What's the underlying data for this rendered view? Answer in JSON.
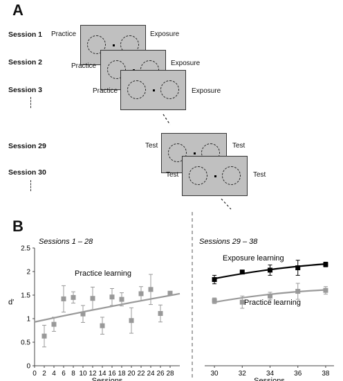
{
  "panel_a": {
    "letter": "A",
    "sessions": [
      {
        "label": "Session 1",
        "left": "Practice",
        "right": "Exposure"
      },
      {
        "label": "Session 2",
        "left": "Practice",
        "right": "Exposure"
      },
      {
        "label": "Session 3",
        "left": "Practice",
        "right": "Exposure"
      },
      {
        "label": "Session 29",
        "left": "Test",
        "right": "Test"
      },
      {
        "label": "Session 30",
        "left": "Test",
        "right": "Test"
      }
    ]
  },
  "panel_b": {
    "letter": "B"
  },
  "chart_data": [
    {
      "type": "scatter",
      "title": "Sessions  1 – 28",
      "xlabel": "Sessions",
      "ylabel": "d'",
      "xlim": [
        0,
        30
      ],
      "ylim": [
        0,
        2.5
      ],
      "xticks": [
        0,
        2,
        4,
        6,
        8,
        10,
        12,
        14,
        16,
        18,
        20,
        22,
        24,
        26,
        28
      ],
      "yticks": [
        0,
        0.5,
        1,
        1.5,
        2,
        2.5
      ],
      "series": [
        {
          "name": "Practice learning",
          "color": "#999999",
          "x": [
            2,
            4,
            6,
            8,
            10,
            12,
            14,
            16,
            18,
            20,
            22,
            24,
            26,
            28
          ],
          "y": [
            0.63,
            0.88,
            1.42,
            1.45,
            1.1,
            1.43,
            0.85,
            1.46,
            1.41,
            0.96,
            1.53,
            1.62,
            1.11,
            1.54
          ],
          "err": [
            0.23,
            0.15,
            0.28,
            0.12,
            0.18,
            0.24,
            0.18,
            0.18,
            0.14,
            0.27,
            0.15,
            0.32,
            0.18,
            0.0
          ],
          "fit": {
            "x0": 0,
            "y0": 0.93,
            "x1": 30,
            "y1": 1.53
          }
        }
      ]
    },
    {
      "type": "scatter",
      "title": "Sessions  29 – 38",
      "xlabel": "Sessions",
      "ylabel": "",
      "xlim": [
        29.3,
        38.6
      ],
      "ylim": [
        0,
        2.5
      ],
      "xticks": [
        30,
        32,
        34,
        36,
        38
      ],
      "series": [
        {
          "name": "Exposure learning",
          "color": "#000000",
          "x": [
            30,
            32,
            34,
            36,
            38
          ],
          "y": [
            1.83,
            1.99,
            2.03,
            2.08,
            2.15
          ],
          "err": [
            0.09,
            0.03,
            0.11,
            0.16,
            0.05
          ],
          "fit": {
            "x0": 30,
            "y0": 1.85,
            "x1": 38,
            "y1": 2.16
          }
        },
        {
          "name": "Practice learning",
          "color": "#999999",
          "x": [
            30,
            32,
            34,
            36,
            38
          ],
          "y": [
            1.38,
            1.35,
            1.48,
            1.58,
            1.6
          ],
          "err": [
            0.06,
            0.13,
            0.08,
            0.17,
            0.08
          ],
          "fit": {
            "x0": 30,
            "y0": 1.35,
            "x1": 38,
            "y1": 1.61
          }
        }
      ]
    }
  ]
}
